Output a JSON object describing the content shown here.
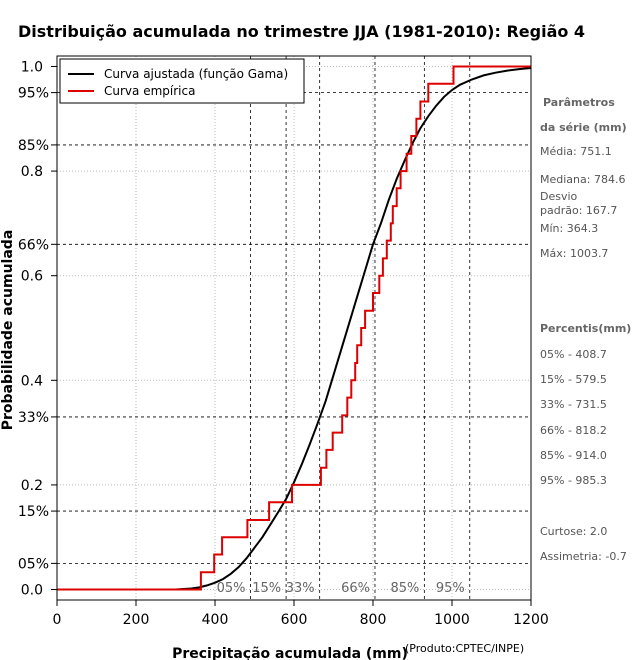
{
  "chart_data": {
    "type": "line",
    "title": "Distribuição acumulada no trimestre JJA (1981-2010): Região 4",
    "xlabel": "Precipitação acumulada (mm)",
    "ylabel": "Probabilidade acumulada",
    "credit": "(Produto:CPTEC/INPE)",
    "xlim": [
      0,
      1200
    ],
    "ylim": [
      -0.02,
      1.02
    ],
    "xticks": [
      0,
      200,
      400,
      600,
      800,
      1000,
      1200
    ],
    "xtick_labels": [
      "0",
      "200",
      "400",
      "600",
      "800",
      "1000",
      "1200"
    ],
    "yticks": [
      0.0,
      0.2,
      0.4,
      0.6,
      0.8,
      1.0
    ],
    "ytick_labels": [
      "0.0",
      "0.2",
      "0.4",
      "0.6",
      "0.8",
      "1.0"
    ],
    "grid": true,
    "legend_position": "top-left",
    "series": [
      {
        "name": "Curva ajustada (função Gama)",
        "color": "#000000",
        "x": [
          0,
          300,
          340,
          360,
          380,
          400,
          420,
          440,
          460,
          480,
          500,
          520,
          540,
          560,
          580,
          600,
          620,
          640,
          660,
          680,
          700,
          720,
          740,
          760,
          780,
          800,
          820,
          840,
          860,
          880,
          900,
          920,
          940,
          960,
          980,
          1000,
          1020,
          1050,
          1080,
          1110,
          1140,
          1170,
          1200
        ],
        "values": [
          0.0,
          0.0,
          0.002,
          0.004,
          0.008,
          0.013,
          0.02,
          0.03,
          0.043,
          0.06,
          0.08,
          0.1,
          0.124,
          0.148,
          0.173,
          0.205,
          0.24,
          0.278,
          0.318,
          0.36,
          0.41,
          0.46,
          0.51,
          0.56,
          0.61,
          0.66,
          0.7,
          0.745,
          0.785,
          0.82,
          0.853,
          0.882,
          0.905,
          0.925,
          0.942,
          0.955,
          0.965,
          0.975,
          0.983,
          0.988,
          0.992,
          0.995,
          0.997
        ]
      },
      {
        "name": "Curva empírica",
        "color": "#dd0000",
        "step_x": [
          364.3,
          398,
          418,
          482,
          537,
          595,
          668,
          682,
          698,
          722,
          735,
          745,
          755,
          760,
          770,
          780,
          800,
          816,
          825,
          835,
          845,
          850,
          860,
          870,
          885,
          897,
          910,
          920,
          940,
          975,
          1003.7
        ],
        "step_values": [
          0.033,
          0.067,
          0.1,
          0.133,
          0.167,
          0.2,
          0.233,
          0.267,
          0.3,
          0.333,
          0.367,
          0.4,
          0.433,
          0.467,
          0.5,
          0.533,
          0.567,
          0.6,
          0.633,
          0.667,
          0.7,
          0.733,
          0.767,
          0.8,
          0.833,
          0.867,
          0.9,
          0.933,
          0.967,
          0.967,
          1.0
        ]
      }
    ],
    "percentile_marks": {
      "levels": [
        0.05,
        0.15,
        0.33,
        0.66,
        0.85,
        0.95
      ],
      "level_labels": [
        "05%",
        "15%",
        "33%",
        "66%",
        "85%",
        "95%"
      ],
      "x_values": [
        490,
        580,
        665,
        805,
        930,
        1045
      ],
      "x_labels": [
        "05%",
        "15%",
        "33%",
        "66%",
        "85%",
        "95%"
      ]
    }
  },
  "sidebar": {
    "params_title_1": "Parâmetros",
    "params_title_2": "da série (mm)",
    "media": "Média: 751.1",
    "mediana": "Mediana: 784.6",
    "desvio_1": "Desvio",
    "desvio_2": "padrão: 167.7",
    "min": "Mín: 364.3",
    "max": "Máx: 1003.7",
    "percentis_title": "Percentis(mm)",
    "p05": "05% - 408.7",
    "p15": "15% - 579.5",
    "p33": "33% - 731.5",
    "p66": "66% - 818.2",
    "p85": "85% - 914.0",
    "p95": "95% - 985.3",
    "curtose": "Curtose: 2.0",
    "assimetria": "Assimetria: -0.7"
  }
}
